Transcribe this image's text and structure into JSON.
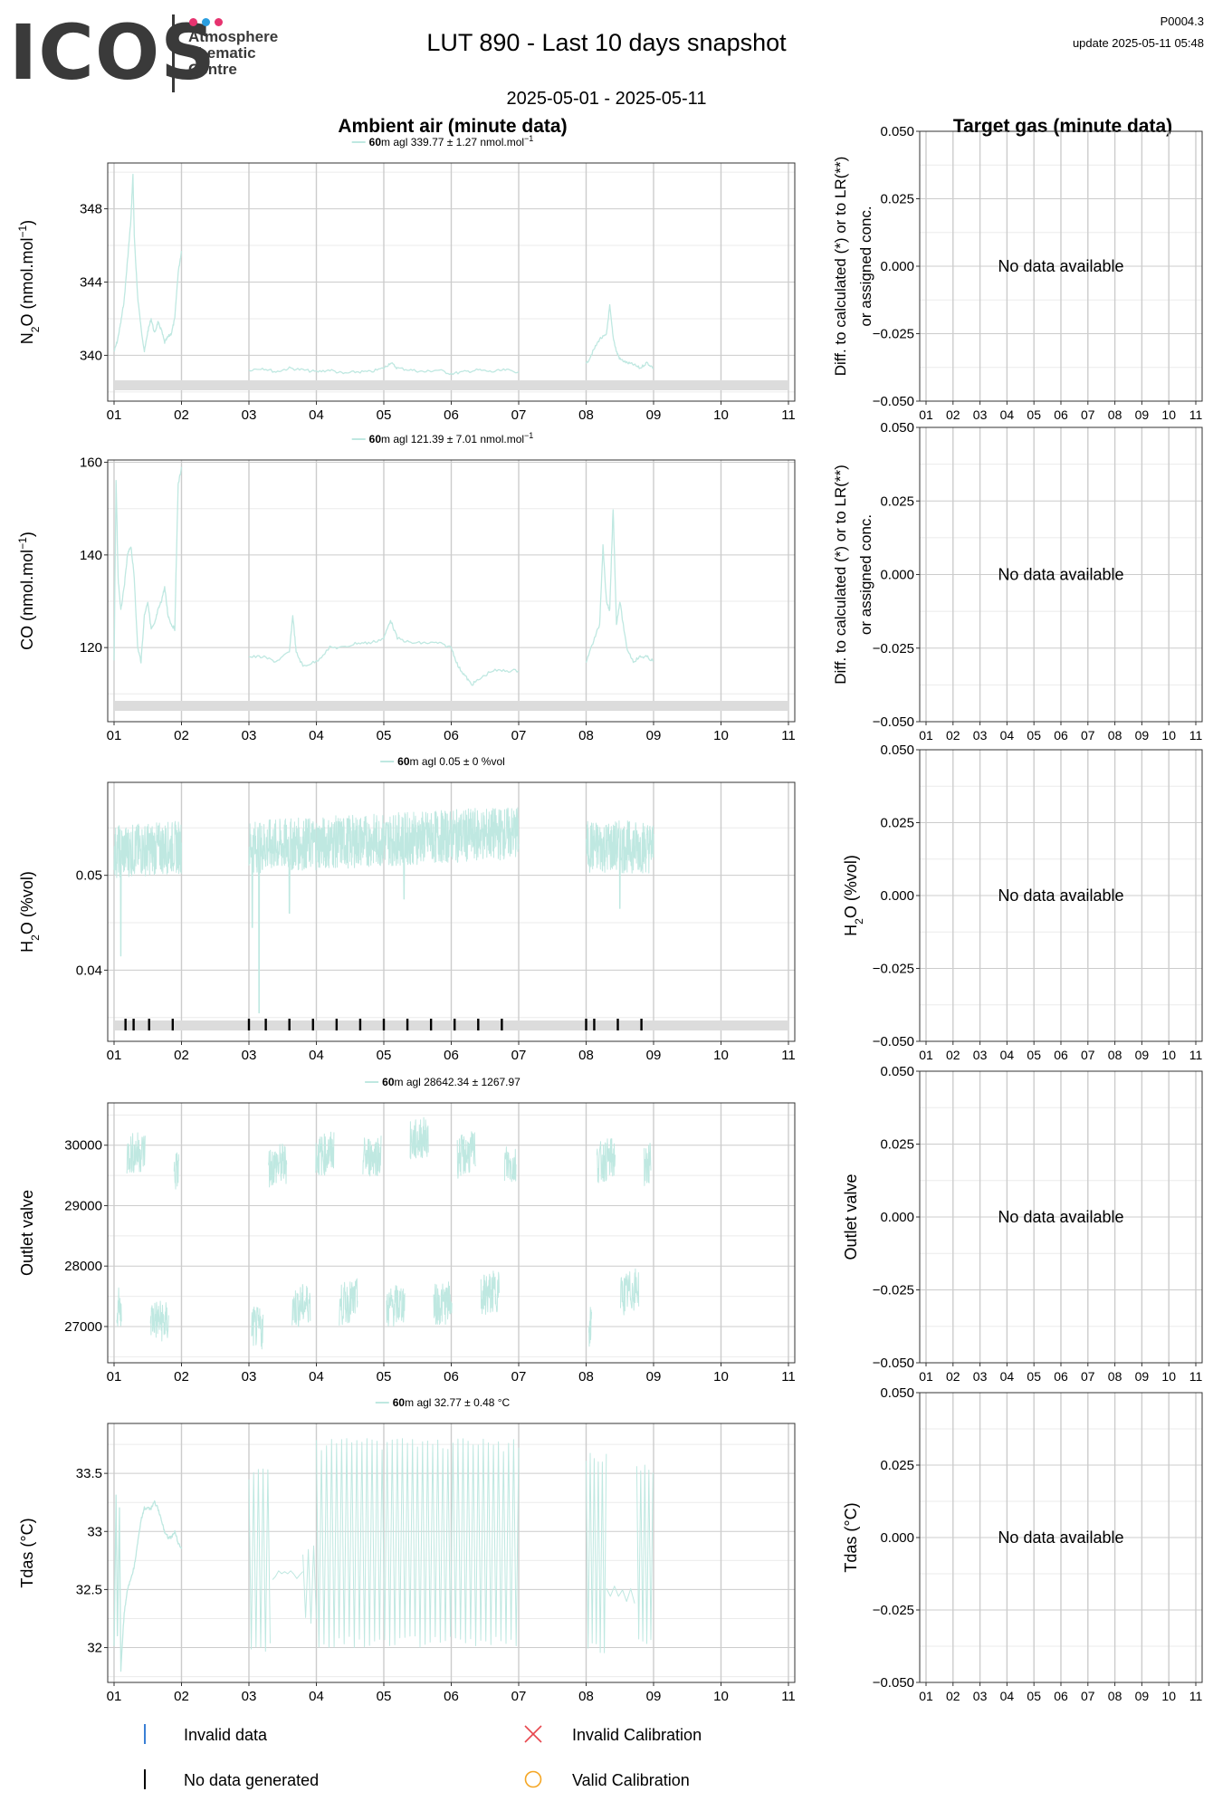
{
  "header": {
    "logo_text": "ICOS",
    "logo_subtitle": [
      "Atmosphere",
      "Thematic",
      "Centre"
    ],
    "logo_dot_colors": [
      "#e6336f",
      "#2a9ee0",
      "#e6336f"
    ],
    "title": "LUT 890 - Last 10 days snapshot",
    "date_range": "2025-05-01 - 2025-05-11",
    "version": "P0004.3",
    "update": "update  2025-05-11 05:48"
  },
  "left_title": "Ambient air (minute data)",
  "right_title": "Target gas (minute data)",
  "x_ticks": [
    "01",
    "02",
    "03",
    "04",
    "05",
    "06",
    "07",
    "08",
    "09",
    "10",
    "11"
  ],
  "no_data_text": "No data available",
  "colors": {
    "series": "#bfe8e1",
    "flag_band": "#dcdcdc",
    "grid_major": "#cccccc",
    "grid_minor": "#ebebeb",
    "invalid_data": "#3a7fd5",
    "invalid_calibration": "#e8474e",
    "valid_calibration": "#f5a623"
  },
  "legend": {
    "invalid_data": "Invalid data",
    "no_data_generated": "No data generated",
    "invalid_calibration": "Invalid Calibration",
    "valid_calibration": "Valid Calibration"
  },
  "chart_data": [
    {
      "type": "line",
      "panel": "ambient",
      "ylabel": "N2O (nmol.mol-1)",
      "legend_label": {
        "height": "60",
        "text": "m agl 339.77 ± 1.27 nmol.mol",
        "sup": "−1"
      },
      "yticks": [
        340,
        344,
        348
      ],
      "ylim": [
        337.5,
        350.5
      ],
      "flag_band": true,
      "no_data_marks": [],
      "segments": [
        {
          "x": [
            1.0,
            1.05,
            1.1,
            1.15,
            1.2,
            1.25,
            1.28,
            1.3,
            1.35,
            1.4,
            1.45,
            1.5,
            1.55,
            1.6,
            1.65,
            1.7,
            1.75,
            1.8,
            1.85,
            1.9,
            1.95,
            2.0
          ],
          "y": [
            340.2,
            340.8,
            341.8,
            343.0,
            345.2,
            347.4,
            349.9,
            346.5,
            343.2,
            341.5,
            340.2,
            341.3,
            342.0,
            341.2,
            341.8,
            341.4,
            340.7,
            341.0,
            341.2,
            342.0,
            344.5,
            345.7
          ]
        },
        {
          "x": [
            3.0,
            3.2,
            3.4,
            3.6,
            3.8,
            4.0,
            4.2,
            4.4,
            4.6,
            4.8,
            5.0,
            5.1,
            5.2,
            5.4,
            5.6,
            5.8,
            6.0,
            6.2,
            6.4,
            6.6,
            6.8,
            7.0
          ],
          "y": [
            339.2,
            339.3,
            339.1,
            339.3,
            339.2,
            339.1,
            339.2,
            339.0,
            339.1,
            339.1,
            339.3,
            339.6,
            339.3,
            339.2,
            339.1,
            339.2,
            339.0,
            339.1,
            339.2,
            339.1,
            339.2,
            339.1
          ]
        },
        {
          "x": [
            8.0,
            8.1,
            8.2,
            8.3,
            8.35,
            8.4,
            8.45,
            8.5,
            8.6,
            8.7,
            8.8,
            8.9,
            9.0
          ],
          "y": [
            339.5,
            340.2,
            340.9,
            341.1,
            342.7,
            341.0,
            340.2,
            339.8,
            339.6,
            339.5,
            339.3,
            339.6,
            339.3
          ]
        }
      ]
    },
    {
      "type": "line",
      "panel": "ambient",
      "ylabel": "CO (nmol.mol-1)",
      "legend_label": {
        "height": "60",
        "text": "m agl 121.39 ± 7.01 nmol.mol",
        "sup": "−1"
      },
      "yticks": [
        120,
        140,
        160
      ],
      "ylim": [
        104,
        160.5
      ],
      "flag_band": true,
      "no_data_marks": [],
      "segments": [
        {
          "x": [
            1.0,
            1.03,
            1.06,
            1.1,
            1.15,
            1.2,
            1.25,
            1.3,
            1.35,
            1.4,
            1.45,
            1.5,
            1.55,
            1.6,
            1.65,
            1.7,
            1.75,
            1.8,
            1.85,
            1.9,
            1.95,
            2.0
          ],
          "y": [
            117,
            156,
            135,
            128,
            133,
            140,
            142,
            135,
            120,
            117,
            127,
            130,
            124,
            125,
            128,
            130,
            133,
            127,
            125,
            124,
            155,
            159
          ]
        },
        {
          "x": [
            3.0,
            3.2,
            3.4,
            3.6,
            3.65,
            3.7,
            3.8,
            4.0,
            4.2,
            4.4,
            4.6,
            4.8,
            5.0,
            5.1,
            5.2,
            5.4,
            5.6,
            5.8,
            6.0,
            6.1,
            6.2,
            6.3,
            6.4,
            6.6,
            6.8,
            7.0
          ],
          "y": [
            118,
            118,
            117,
            119,
            127,
            119,
            116,
            117,
            120,
            120,
            121,
            121,
            122,
            126,
            122,
            121,
            121,
            121,
            120,
            116,
            114,
            112,
            113,
            115,
            115,
            115
          ]
        },
        {
          "x": [
            8.0,
            8.1,
            8.2,
            8.25,
            8.3,
            8.35,
            8.4,
            8.45,
            8.5,
            8.6,
            8.7,
            8.8,
            8.9,
            9.0
          ],
          "y": [
            117,
            121,
            125,
            142,
            130,
            128,
            150,
            125,
            130,
            120,
            117,
            118,
            118,
            117
          ]
        }
      ]
    },
    {
      "type": "line",
      "panel": "ambient",
      "ylabel": "H2O (%vol)",
      "legend_label": {
        "height": "60",
        "text": "m agl 0.05 ± 0 %vol",
        "sup": ""
      },
      "yticks": [
        0.04,
        0.05
      ],
      "ylim": [
        0.0325,
        0.0598
      ],
      "flag_band": true,
      "no_data_marks": [
        1.17,
        1.29,
        1.52,
        1.87,
        3.0,
        3.25,
        3.6,
        3.95,
        4.3,
        4.65,
        5.0,
        5.35,
        5.7,
        6.05,
        6.4,
        6.75,
        8.0,
        8.12,
        8.47,
        8.82
      ],
      "noise": {
        "base": 0.0528,
        "amp": 0.0028,
        "dips": [
          [
            1.1,
            0.0415
          ],
          [
            3.05,
            0.0445
          ],
          [
            3.15,
            0.0355
          ],
          [
            3.6,
            0.046
          ],
          [
            5.3,
            0.0475
          ],
          [
            8.5,
            0.0465
          ]
        ]
      },
      "segments": [
        {
          "x": [
            1.0,
            2.0
          ],
          "y": [
            0.0525,
            0.053
          ]
        },
        {
          "x": [
            3.0,
            7.0
          ],
          "y": [
            0.053,
            0.0545
          ]
        },
        {
          "x": [
            8.0,
            9.0
          ],
          "y": [
            0.053,
            0.053
          ]
        }
      ]
    },
    {
      "type": "line",
      "panel": "ambient",
      "ylabel": "Outlet valve",
      "legend_label": {
        "height": "60",
        "text": "m agl 28642.34 ± 1267.97",
        "sup": ""
      },
      "yticks": [
        27000,
        28000,
        29000,
        30000
      ],
      "ylim": [
        26400,
        30700
      ],
      "flag_band": false,
      "no_data_marks": [],
      "blocks": [
        {
          "x": [
            1.0,
            1.15
          ],
          "y": [
            27350,
            27200
          ]
        },
        {
          "x": [
            1.15,
            1.5
          ],
          "y": [
            29850,
            29900
          ]
        },
        {
          "x": [
            1.5,
            1.85
          ],
          "y": [
            27150,
            27050
          ]
        },
        {
          "x": [
            1.85,
            2.0
          ],
          "y": [
            29550,
            29600
          ]
        },
        {
          "x": [
            3.0,
            3.25
          ],
          "y": [
            27000,
            26950
          ]
        },
        {
          "x": [
            3.25,
            3.6
          ],
          "y": [
            29650,
            29700
          ]
        },
        {
          "x": [
            3.6,
            3.95
          ],
          "y": [
            27300,
            27400
          ]
        },
        {
          "x": [
            3.95,
            4.3
          ],
          "y": [
            29800,
            29900
          ]
        },
        {
          "x": [
            4.3,
            4.65
          ],
          "y": [
            27350,
            27450
          ]
        },
        {
          "x": [
            4.65,
            5.0
          ],
          "y": [
            29800,
            29850
          ]
        },
        {
          "x": [
            5.0,
            5.35
          ],
          "y": [
            27300,
            27400
          ]
        },
        {
          "x": [
            5.35,
            5.7
          ],
          "y": [
            30050,
            30150
          ]
        },
        {
          "x": [
            5.7,
            6.05
          ],
          "y": [
            27350,
            27400
          ]
        },
        {
          "x": [
            6.05,
            6.4
          ],
          "y": [
            29800,
            29900
          ]
        },
        {
          "x": [
            6.4,
            6.75
          ],
          "y": [
            27500,
            27600
          ]
        },
        {
          "x": [
            6.75,
            7.0
          ],
          "y": [
            29700,
            29650
          ]
        },
        {
          "x": [
            8.0,
            8.12
          ],
          "y": [
            27000,
            27100
          ]
        },
        {
          "x": [
            8.12,
            8.47
          ],
          "y": [
            29700,
            29800
          ]
        },
        {
          "x": [
            8.47,
            8.82
          ],
          "y": [
            27500,
            27650
          ]
        },
        {
          "x": [
            8.82,
            9.0
          ],
          "y": [
            29650,
            29700
          ]
        }
      ]
    },
    {
      "type": "line",
      "panel": "ambient",
      "ylabel": "Tdas (°C)",
      "legend_label": {
        "height": "60",
        "text": "m agl 32.77 ± 0.48 °C",
        "sup": ""
      },
      "yticks": [
        32.0,
        32.5,
        33.0,
        33.5
      ],
      "ylim": [
        31.7,
        33.93
      ],
      "flag_band": false,
      "no_data_marks": [],
      "segments": [
        {
          "x": [
            1.0,
            1.03,
            1.05,
            1.08,
            1.1,
            1.15,
            1.2,
            1.25,
            1.3,
            1.35,
            1.4,
            1.45,
            1.5,
            1.55,
            1.6,
            1.65,
            1.7,
            1.75,
            1.8,
            1.85,
            1.9,
            1.95,
            2.0
          ],
          "y": [
            32.0,
            33.3,
            32.1,
            33.2,
            31.8,
            32.3,
            32.5,
            32.6,
            32.7,
            32.9,
            33.1,
            33.2,
            33.2,
            33.2,
            33.25,
            33.2,
            33.1,
            33.0,
            32.95,
            32.95,
            33.0,
            32.9,
            32.85
          ]
        }
      ],
      "oscillations": [
        {
          "x0": 3.0,
          "x1": 3.35,
          "hi": 33.55,
          "lo": 31.95,
          "period": 0.07
        },
        {
          "x0": 3.35,
          "x1": 3.8,
          "hi": 32.7,
          "lo": 32.55,
          "period": 0.09
        },
        {
          "x0": 3.8,
          "x1": 4.0,
          "hi": 32.9,
          "lo": 32.2,
          "period": 0.08
        },
        {
          "x0": 4.0,
          "x1": 7.0,
          "hi": 33.8,
          "lo": 32.0,
          "period": 0.075
        },
        {
          "x0": 8.0,
          "x1": 8.3,
          "hi": 33.7,
          "lo": 31.95,
          "period": 0.06
        },
        {
          "x0": 8.3,
          "x1": 8.75,
          "hi": 32.6,
          "lo": 32.35,
          "period": 0.12
        },
        {
          "x0": 8.75,
          "x1": 9.0,
          "hi": 33.6,
          "lo": 32.0,
          "period": 0.06
        }
      ]
    },
    {
      "type": "line",
      "panel": "target",
      "ylabel": [
        "Diff. to calculated (*) or to LR(**)",
        "or assigned conc."
      ],
      "yticks": [
        -0.05,
        -0.025,
        0.0,
        0.025,
        0.05
      ],
      "ytick_labels": [
        "−0.050",
        "−0.025",
        "0.000",
        "0.025",
        "0.050"
      ],
      "ylim": [
        -0.05,
        0.05
      ],
      "series": []
    },
    {
      "type": "line",
      "panel": "target",
      "ylabel": [
        "Diff. to calculated (*) or to LR(**)",
        "or assigned conc."
      ],
      "yticks": [
        -0.05,
        -0.025,
        0.0,
        0.025,
        0.05
      ],
      "ytick_labels": [
        "−0.050",
        "−0.025",
        "0.000",
        "0.025",
        "0.050"
      ],
      "ylim": [
        -0.05,
        0.05
      ],
      "series": []
    },
    {
      "type": "line",
      "panel": "target",
      "ylabel": "H2O (%vol)",
      "yticks": [
        -0.05,
        -0.025,
        0.0,
        0.025,
        0.05
      ],
      "ytick_labels": [
        "−0.050",
        "−0.025",
        "0.000",
        "0.025",
        "0.050"
      ],
      "ylim": [
        -0.05,
        0.05
      ],
      "series": []
    },
    {
      "type": "line",
      "panel": "target",
      "ylabel": "Outlet valve",
      "yticks": [
        -0.05,
        -0.025,
        0.0,
        0.025,
        0.05
      ],
      "ytick_labels": [
        "−0.050",
        "−0.025",
        "0.000",
        "0.025",
        "0.050"
      ],
      "ylim": [
        -0.05,
        0.05
      ],
      "series": []
    },
    {
      "type": "line",
      "panel": "target",
      "ylabel": "Tdas (°C)",
      "yticks": [
        -0.05,
        -0.025,
        0.0,
        0.025,
        0.05
      ],
      "ytick_labels": [
        "−0.050",
        "−0.025",
        "0.000",
        "0.025",
        "0.050"
      ],
      "ylim": [
        -0.05,
        0.05
      ],
      "series": []
    }
  ]
}
